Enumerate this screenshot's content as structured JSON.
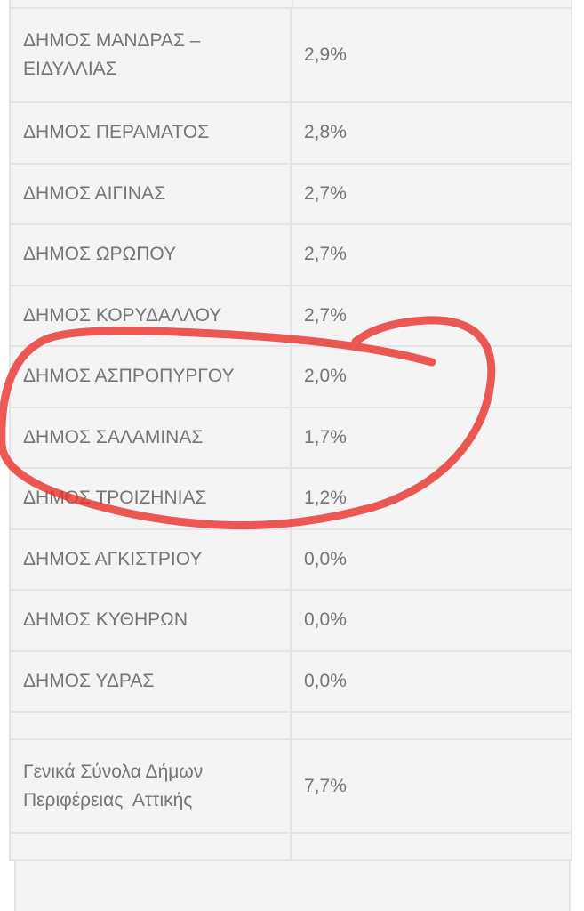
{
  "rows": [
    {
      "name": "ΔΗΜΟΣ ΜΑΝΔΡΑΣ – ΕΙΔΥΛΛΙΑΣ",
      "value": "2,9%"
    },
    {
      "name": "ΔΗΜΟΣ ΠΕΡΑΜΑΤΟΣ",
      "value": "2,8%"
    },
    {
      "name": "ΔΗΜΟΣ ΑΙΓΙΝΑΣ",
      "value": "2,7%"
    },
    {
      "name": "ΔΗΜΟΣ ΩΡΩΠΟΥ",
      "value": "2,7%"
    },
    {
      "name": "ΔΗΜΟΣ ΚΟΡΥΔΑΛΛΟΥ",
      "value": "2,7%"
    },
    {
      "name": "ΔΗΜΟΣ ΑΣΠΡΟΠΥΡΓΟΥ",
      "value": "2,0%"
    },
    {
      "name": "ΔΗΜΟΣ ΣΑΛΑΜΙΝΑΣ",
      "value": "1,7%"
    },
    {
      "name": "ΔΗΜΟΣ ΤΡΟΙΖΗΝΙΑΣ",
      "value": "1,2%"
    },
    {
      "name": "ΔΗΜΟΣ ΑΓΚΙΣΤΡΙΟΥ",
      "value": "0,0%"
    },
    {
      "name": "ΔΗΜΟΣ ΚΥΘΗΡΩΝ",
      "value": "0,0%"
    },
    {
      "name": "ΔΗΜΟΣ ΥΔΡΑΣ",
      "value": "0,0%"
    }
  ],
  "total": {
    "name_line1": "Γενικά Σύνολα Δήμων",
    "name_line2": "Περιφέρειας  Αττικής",
    "value": "7,7%"
  },
  "annotation": {
    "type": "hand-drawn-circle",
    "color": "#e8302a",
    "encircled_rows": [
      "ΔΗΜΟΣ ΑΣΠΡΟΠΥΡΓΟΥ",
      "ΔΗΜΟΣ ΣΑΛΑΜΙΝΑΣ",
      "ΔΗΜΟΣ ΤΡΟΙΖΗΝΙΑΣ"
    ]
  }
}
